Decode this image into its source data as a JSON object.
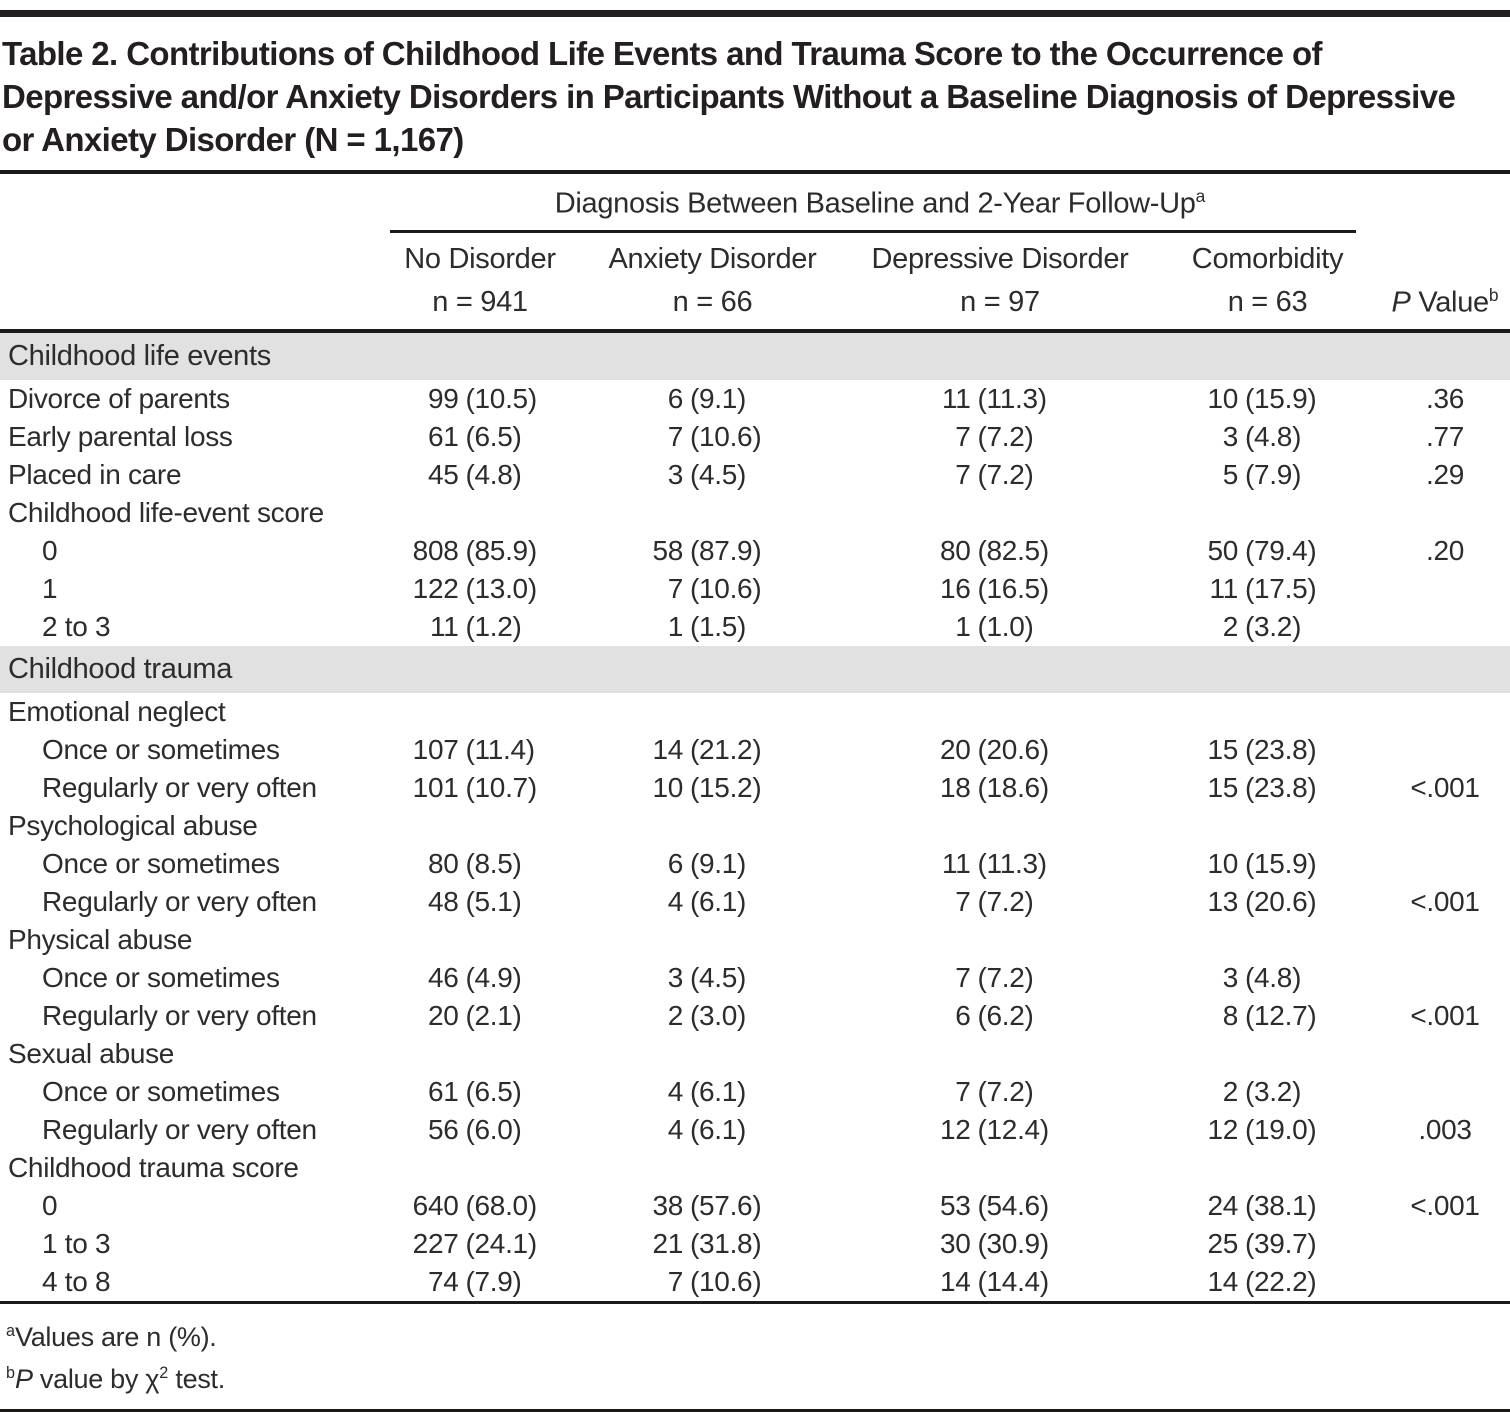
{
  "title": "Table 2. Contributions of Childhood Life Events and Trauma Score to the Occurrence of Depressive and/or Anxiety Disorders in Participants Without a Baseline Diagnosis of Depressive or Anxiety Disorder (N = 1,167)",
  "header": {
    "span_label": "Diagnosis Between Baseline and 2-Year Follow-Up",
    "span_sup": "a",
    "columns": [
      {
        "label": "No Disorder",
        "n": "n = 941"
      },
      {
        "label": "Anxiety Disorder",
        "n": "n = 66"
      },
      {
        "label": "Depressive Disorder",
        "n": "n = 97"
      },
      {
        "label": "Comorbidity",
        "n": "n = 63"
      }
    ],
    "p_label_italic": "P",
    "p_label_rest": " Value",
    "p_sup": "b"
  },
  "sections": [
    {
      "heading": "Childhood life events",
      "rows": [
        {
          "label": "Divorce of parents",
          "indent": 0,
          "cells": [
            [
              "99",
              "(10.5)"
            ],
            [
              "6",
              "(9.1)"
            ],
            [
              "11",
              "(11.3)"
            ],
            [
              "10",
              "(15.9)"
            ]
          ],
          "p": ".36"
        },
        {
          "label": "Early parental loss",
          "indent": 0,
          "cells": [
            [
              "61",
              "(6.5)"
            ],
            [
              "7",
              "(10.6)"
            ],
            [
              "7",
              "(7.2)"
            ],
            [
              "3",
              "(4.8)"
            ]
          ],
          "p": ".77"
        },
        {
          "label": "Placed in care",
          "indent": 0,
          "cells": [
            [
              "45",
              "(4.8)"
            ],
            [
              "3",
              "(4.5)"
            ],
            [
              "7",
              "(7.2)"
            ],
            [
              "5",
              "(7.9)"
            ]
          ],
          "p": ".29"
        },
        {
          "label": "Childhood life-event score",
          "indent": 0,
          "cells": [],
          "p": ""
        },
        {
          "label": "0",
          "indent": 1,
          "cells": [
            [
              "808",
              "(85.9)"
            ],
            [
              "58",
              "(87.9)"
            ],
            [
              "80",
              "(82.5)"
            ],
            [
              "50",
              "(79.4)"
            ]
          ],
          "p": ".20"
        },
        {
          "label": "1",
          "indent": 1,
          "cells": [
            [
              "122",
              "(13.0)"
            ],
            [
              "7",
              "(10.6)"
            ],
            [
              "16",
              "(16.5)"
            ],
            [
              "11",
              "(17.5)"
            ]
          ],
          "p": ""
        },
        {
          "label": "2 to 3",
          "indent": 1,
          "cells": [
            [
              "11",
              "(1.2)"
            ],
            [
              "1",
              "(1.5)"
            ],
            [
              "1",
              "(1.0)"
            ],
            [
              "2",
              "(3.2)"
            ]
          ],
          "p": ""
        }
      ]
    },
    {
      "heading": "Childhood trauma",
      "rows": [
        {
          "label": "Emotional neglect",
          "indent": 0,
          "cells": [],
          "p": ""
        },
        {
          "label": "Once or sometimes",
          "indent": 1,
          "cells": [
            [
              "107",
              "(11.4)"
            ],
            [
              "14",
              "(21.2)"
            ],
            [
              "20",
              "(20.6)"
            ],
            [
              "15",
              "(23.8)"
            ]
          ],
          "p": ""
        },
        {
          "label": "Regularly or very often",
          "indent": 1,
          "cells": [
            [
              "101",
              "(10.7)"
            ],
            [
              "10",
              "(15.2)"
            ],
            [
              "18",
              "(18.6)"
            ],
            [
              "15",
              "(23.8)"
            ]
          ],
          "p": "<.001"
        },
        {
          "label": "Psychological abuse",
          "indent": 0,
          "cells": [],
          "p": ""
        },
        {
          "label": "Once or sometimes",
          "indent": 1,
          "cells": [
            [
              "80",
              "(8.5)"
            ],
            [
              "6",
              "(9.1)"
            ],
            [
              "11",
              "(11.3)"
            ],
            [
              "10",
              "(15.9)"
            ]
          ],
          "p": ""
        },
        {
          "label": "Regularly or very often",
          "indent": 1,
          "cells": [
            [
              "48",
              "(5.1)"
            ],
            [
              "4",
              "(6.1)"
            ],
            [
              "7",
              "(7.2)"
            ],
            [
              "13",
              "(20.6)"
            ]
          ],
          "p": "<.001"
        },
        {
          "label": "Physical abuse",
          "indent": 0,
          "cells": [],
          "p": ""
        },
        {
          "label": "Once or sometimes",
          "indent": 1,
          "cells": [
            [
              "46",
              "(4.9)"
            ],
            [
              "3",
              "(4.5)"
            ],
            [
              "7",
              "(7.2)"
            ],
            [
              "3",
              "(4.8)"
            ]
          ],
          "p": ""
        },
        {
          "label": "Regularly or very often",
          "indent": 1,
          "cells": [
            [
              "20",
              "(2.1)"
            ],
            [
              "2",
              "(3.0)"
            ],
            [
              "6",
              "(6.2)"
            ],
            [
              "8",
              "(12.7)"
            ]
          ],
          "p": "<.001"
        },
        {
          "label": "Sexual abuse",
          "indent": 0,
          "cells": [],
          "p": ""
        },
        {
          "label": "Once or sometimes",
          "indent": 1,
          "cells": [
            [
              "61",
              "(6.5)"
            ],
            [
              "4",
              "(6.1)"
            ],
            [
              "7",
              "(7.2)"
            ],
            [
              "2",
              "(3.2)"
            ]
          ],
          "p": ""
        },
        {
          "label": "Regularly or very often",
          "indent": 1,
          "cells": [
            [
              "56",
              "(6.0)"
            ],
            [
              "4",
              "(6.1)"
            ],
            [
              "12",
              "(12.4)"
            ],
            [
              "12",
              "(19.0)"
            ]
          ],
          "p": ".003"
        },
        {
          "label": "Childhood trauma score",
          "indent": 0,
          "cells": [],
          "p": ""
        },
        {
          "label": "0",
          "indent": 1,
          "cells": [
            [
              "640",
              "(68.0)"
            ],
            [
              "38",
              "(57.6)"
            ],
            [
              "53",
              "(54.6)"
            ],
            [
              "24",
              "(38.1)"
            ]
          ],
          "p": "<.001"
        },
        {
          "label": "1 to 3",
          "indent": 1,
          "cells": [
            [
              "227",
              "(24.1)"
            ],
            [
              "21",
              "(31.8)"
            ],
            [
              "30",
              "(30.9)"
            ],
            [
              "25",
              "(39.7)"
            ]
          ],
          "p": ""
        },
        {
          "label": "4 to 8",
          "indent": 1,
          "cells": [
            [
              "74",
              "(7.9)"
            ],
            [
              "7",
              "(10.6)"
            ],
            [
              "14",
              "(14.4)"
            ],
            [
              "14",
              "(22.2)"
            ]
          ],
          "p": ""
        }
      ]
    }
  ],
  "footnotes": [
    {
      "marker": "a",
      "segments": [
        {
          "t": "Values are n (%).",
          "s": "n"
        }
      ]
    },
    {
      "marker": "b",
      "segments": [
        {
          "t": "P",
          "s": "i"
        },
        {
          "t": " value by χ",
          "s": "n"
        },
        {
          "t": "2",
          "s": "sup"
        },
        {
          "t": " test.",
          "s": "n"
        }
      ]
    }
  ]
}
